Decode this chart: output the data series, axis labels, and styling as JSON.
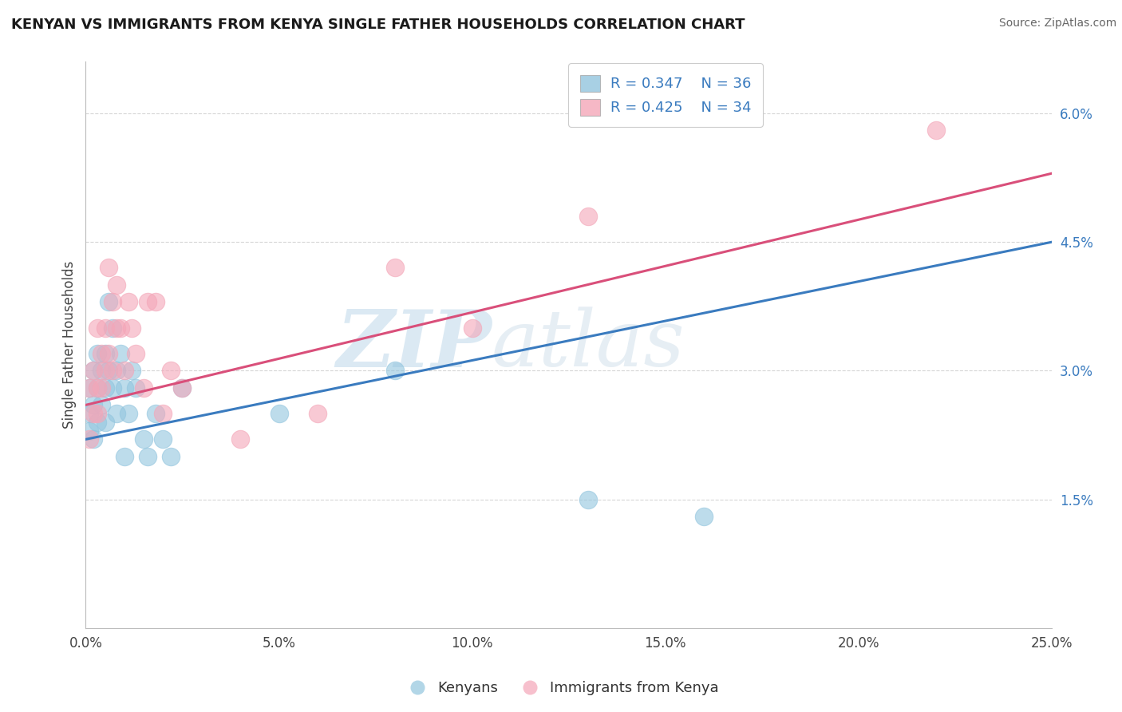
{
  "title": "KENYAN VS IMMIGRANTS FROM KENYA SINGLE FATHER HOUSEHOLDS CORRELATION CHART",
  "source": "Source: ZipAtlas.com",
  "ylabel": "Single Father Households",
  "xmin": 0.0,
  "xmax": 0.25,
  "ymin": 0.0,
  "ymax": 0.066,
  "x_ticks": [
    0.0,
    0.05,
    0.1,
    0.15,
    0.2,
    0.25
  ],
  "x_tick_labels": [
    "0.0%",
    "5.0%",
    "10.0%",
    "15.0%",
    "20.0%",
    "25.0%"
  ],
  "y_ticks_right": [
    0.015,
    0.03,
    0.045,
    0.06
  ],
  "y_tick_labels_right": [
    "1.5%",
    "3.0%",
    "4.5%",
    "6.0%"
  ],
  "watermark_zip": "ZIP",
  "watermark_atlas": "atlas",
  "legend_r1": "R = 0.347",
  "legend_n1": "N = 36",
  "legend_r2": "R = 0.425",
  "legend_n2": "N = 34",
  "color_blue": "#92c5de",
  "color_pink": "#f4a6b8",
  "line_color_blue": "#3a7bbf",
  "line_color_pink": "#d94f7a",
  "text_color_blue": "#3a7bbf",
  "background": "#ffffff",
  "grid_color": "#cccccc",
  "blue_line_start_y": 0.022,
  "blue_line_end_y": 0.045,
  "pink_line_start_y": 0.026,
  "pink_line_end_y": 0.053,
  "blue_x": [
    0.001,
    0.001,
    0.001,
    0.002,
    0.002,
    0.002,
    0.003,
    0.003,
    0.003,
    0.004,
    0.004,
    0.005,
    0.005,
    0.005,
    0.006,
    0.006,
    0.007,
    0.007,
    0.008,
    0.008,
    0.009,
    0.01,
    0.01,
    0.011,
    0.012,
    0.013,
    0.015,
    0.016,
    0.018,
    0.02,
    0.022,
    0.025,
    0.05,
    0.08,
    0.13,
    0.16
  ],
  "blue_y": [
    0.028,
    0.025,
    0.023,
    0.03,
    0.026,
    0.022,
    0.032,
    0.028,
    0.024,
    0.03,
    0.026,
    0.028,
    0.032,
    0.024,
    0.038,
    0.03,
    0.035,
    0.028,
    0.03,
    0.025,
    0.032,
    0.02,
    0.028,
    0.025,
    0.03,
    0.028,
    0.022,
    0.02,
    0.025,
    0.022,
    0.02,
    0.028,
    0.025,
    0.03,
    0.015,
    0.013
  ],
  "pink_x": [
    0.001,
    0.001,
    0.002,
    0.002,
    0.003,
    0.003,
    0.003,
    0.004,
    0.004,
    0.005,
    0.005,
    0.006,
    0.006,
    0.007,
    0.007,
    0.008,
    0.008,
    0.009,
    0.01,
    0.011,
    0.012,
    0.013,
    0.015,
    0.016,
    0.018,
    0.02,
    0.022,
    0.025,
    0.04,
    0.06,
    0.08,
    0.1,
    0.13,
    0.22
  ],
  "pink_y": [
    0.028,
    0.022,
    0.03,
    0.025,
    0.035,
    0.028,
    0.025,
    0.032,
    0.028,
    0.035,
    0.03,
    0.042,
    0.032,
    0.038,
    0.03,
    0.04,
    0.035,
    0.035,
    0.03,
    0.038,
    0.035,
    0.032,
    0.028,
    0.038,
    0.038,
    0.025,
    0.03,
    0.028,
    0.022,
    0.025,
    0.042,
    0.035,
    0.048,
    0.058
  ]
}
